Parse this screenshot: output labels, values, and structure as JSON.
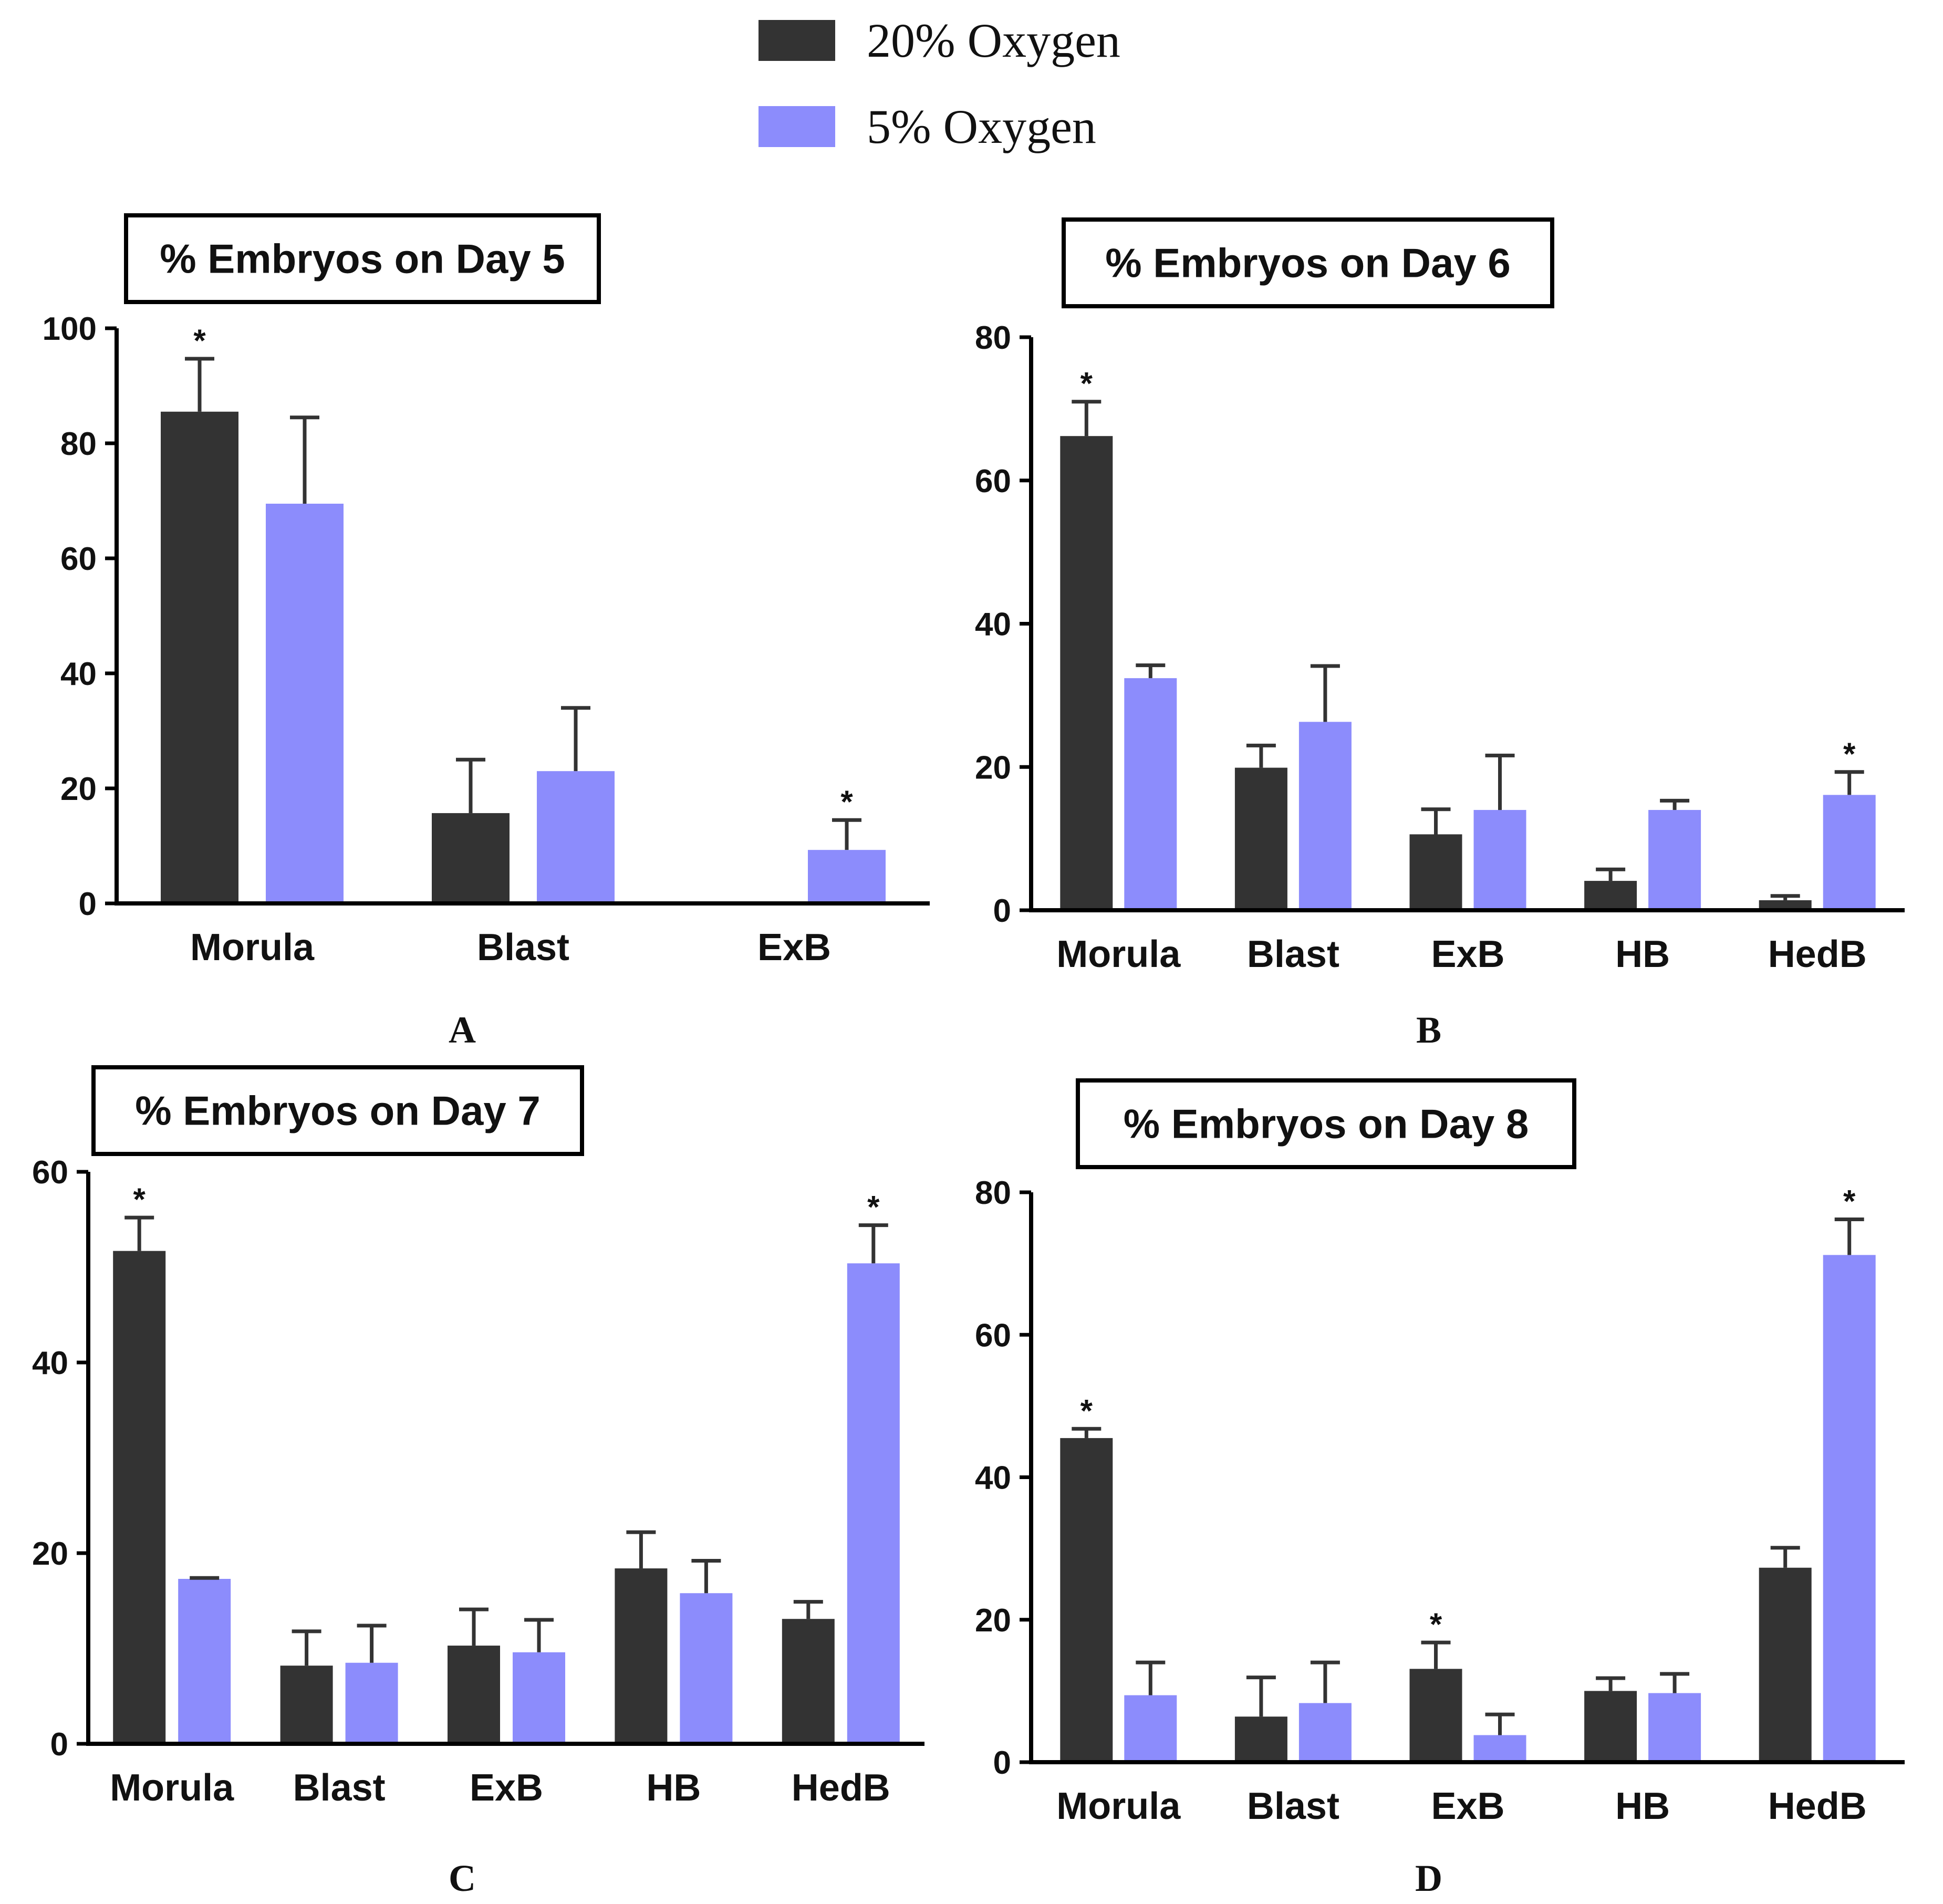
{
  "legend": [
    {
      "name": "20% Oxygen",
      "color": "#333333"
    },
    {
      "name": "5% Oxygen",
      "color": "#8c8cfc"
    }
  ],
  "chart_data": [
    {
      "type": "bar",
      "panel": "A",
      "title": "% Embryos on Day 5",
      "categories": [
        "Morula",
        "Blast",
        "ExB"
      ],
      "ylim": [
        0,
        100
      ],
      "yticks": [
        0,
        20,
        40,
        60,
        80,
        100
      ],
      "series": [
        {
          "name": "20% Oxygen",
          "values": [
            85.5,
            15.7,
            0
          ],
          "errors": [
            9.2,
            9.3,
            0
          ]
        },
        {
          "name": "5% Oxygen",
          "values": [
            69.5,
            23,
            9.3
          ],
          "errors": [
            15,
            11,
            5.2
          ]
        }
      ],
      "significance": [
        {
          "category": "Morula",
          "series": "20% Oxygen"
        },
        {
          "category": "ExB",
          "series": "5% Oxygen"
        }
      ]
    },
    {
      "type": "bar",
      "panel": "B",
      "title": "% Embryos on Day 6",
      "categories": [
        "Morula",
        "Blast",
        "ExB",
        "HB",
        "HedB"
      ],
      "ylim": [
        0,
        80
      ],
      "yticks": [
        0,
        20,
        40,
        60,
        80
      ],
      "series": [
        {
          "name": "20% Oxygen",
          "values": [
            66.2,
            19.9,
            10.6,
            4.1,
            1.4
          ],
          "errors": [
            4.8,
            3.1,
            3.5,
            1.6,
            0.6
          ]
        },
        {
          "name": "5% Oxygen",
          "values": [
            32.4,
            26.3,
            14,
            14,
            16.1
          ],
          "errors": [
            1.8,
            7.8,
            7.6,
            1.3,
            3.2
          ]
        }
      ],
      "significance": [
        {
          "category": "Morula",
          "series": "20% Oxygen"
        },
        {
          "category": "HedB",
          "series": "5% Oxygen"
        }
      ]
    },
    {
      "type": "bar",
      "panel": "C",
      "title": "% Embryos on Day 7",
      "categories": [
        "Morula",
        "Blast",
        "ExB",
        "HB",
        "HedB"
      ],
      "ylim": [
        0,
        60
      ],
      "yticks": [
        0,
        20,
        40,
        60
      ],
      "series": [
        {
          "name": "20% Oxygen",
          "values": [
            51.7,
            8.2,
            10.3,
            18.4,
            13.1
          ],
          "errors": [
            3.5,
            3.6,
            3.8,
            3.8,
            1.8
          ]
        },
        {
          "name": "5% Oxygen",
          "values": [
            17.3,
            8.5,
            9.6,
            15.8,
            50.4
          ],
          "errors": [
            0.1,
            3.9,
            3.4,
            3.4,
            4
          ]
        }
      ],
      "significance": [
        {
          "category": "Morula",
          "series": "20% Oxygen"
        },
        {
          "category": "HedB",
          "series": "5% Oxygen"
        }
      ]
    },
    {
      "type": "bar",
      "panel": "D",
      "title": "% Embryos on Day 8",
      "categories": [
        "Morula",
        "Blast",
        "ExB",
        "HB",
        "HedB"
      ],
      "ylim": [
        0,
        80
      ],
      "yticks": [
        0,
        20,
        40,
        60,
        80
      ],
      "series": [
        {
          "name": "20% Oxygen",
          "values": [
            45.5,
            6.4,
            13.1,
            10,
            27.3
          ],
          "errors": [
            1.3,
            5.5,
            3.7,
            1.8,
            2.8
          ]
        },
        {
          "name": "5% Oxygen",
          "values": [
            9.4,
            8.3,
            3.8,
            9.7,
            71.2
          ],
          "errors": [
            4.6,
            5.7,
            2.9,
            2.7,
            5
          ]
        }
      ],
      "significance": [
        {
          "category": "Morula",
          "series": "20% Oxygen"
        },
        {
          "category": "ExB",
          "series": "20% Oxygen"
        },
        {
          "category": "HedB",
          "series": "5% Oxygen"
        }
      ]
    }
  ]
}
